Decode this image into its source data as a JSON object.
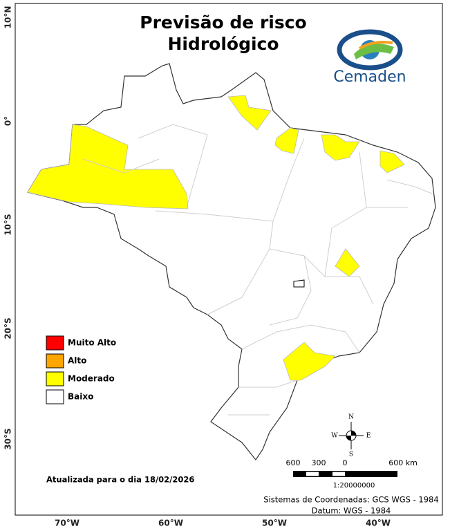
{
  "header": {
    "title_lines": [
      "Previsão de risco",
      "Hidrológico"
    ],
    "logo_text": "Cemaden"
  },
  "legend": {
    "items": [
      {
        "label": "Muito Alto",
        "color": "#ff0000"
      },
      {
        "label": "Alto",
        "color": "#ffa500"
      },
      {
        "label": "Moderado",
        "color": "#ffff00"
      },
      {
        "label": "Baixo",
        "color": "#ffffff"
      }
    ]
  },
  "axes": {
    "latitude_labels": [
      "10°N",
      "0°",
      "10°S",
      "20°S",
      "30°S"
    ],
    "longitude_labels": [
      "70°W",
      "60°W",
      "50°W",
      "40°W"
    ]
  },
  "compass": {
    "north": "N",
    "south": "S",
    "east": "E",
    "west": "W"
  },
  "scale_bar": {
    "labels": [
      "600",
      "300",
      "0",
      "600 km"
    ],
    "ratio": "1:20000000"
  },
  "updated": "Atualizada para o dia 18/02/2026",
  "footer": [
    "Sistemas de Coordenadas: GCS WGS - 1984",
    "Datum: WGS - 1984"
  ]
}
